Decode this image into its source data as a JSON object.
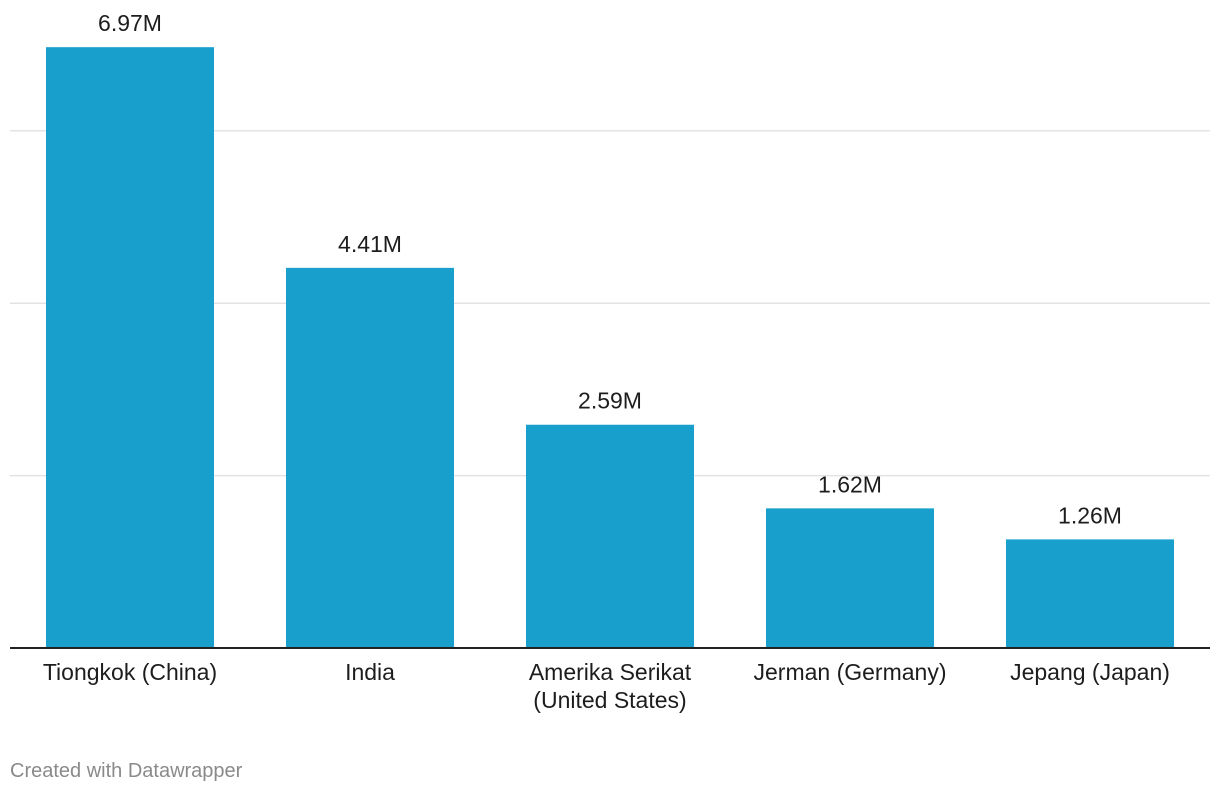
{
  "chart_data": {
    "type": "bar",
    "categories": [
      [
        "Tiongkok (China)"
      ],
      [
        "India"
      ],
      [
        "Amerika Serikat",
        "(United States)"
      ],
      [
        "Jerman (Germany)"
      ],
      [
        "Jepang (Japan)"
      ]
    ],
    "values": [
      6.97,
      4.41,
      2.59,
      1.62,
      1.26
    ],
    "value_labels": [
      "6.97M",
      "4.41M",
      "2.59M",
      "1.62M",
      "1.26M"
    ],
    "title": "",
    "xlabel": "",
    "ylabel": "",
    "ylim": [
      0,
      6
    ],
    "gridlines": [
      2,
      4,
      6
    ],
    "grid": true,
    "bar_color": "#189fcc"
  },
  "footer": {
    "credit": "Created with Datawrapper"
  }
}
